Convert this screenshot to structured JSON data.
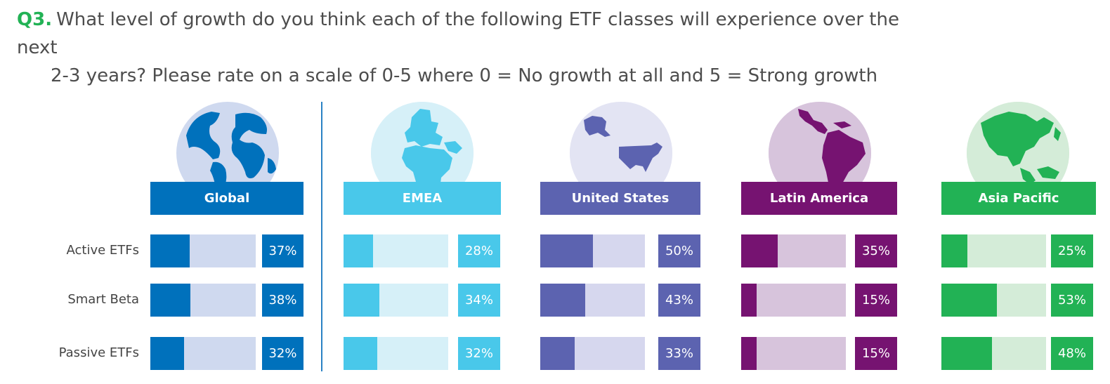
{
  "question": {
    "number": "Q3.",
    "line1": "What level of growth do you think each of the following ETF classes will experience over the next",
    "line2": "2-3 years? Please rate on a scale of 0-5 where 0 = No growth at all and 5 = Strong growth"
  },
  "chart_data": {
    "type": "bar",
    "title": "What level of growth do you think each of the following ETF classes will experience over the next 2-3 years?",
    "categories": [
      "Active ETFs",
      "Smart Beta",
      "Passive ETFs"
    ],
    "unit": "%",
    "ylim": [
      0,
      100
    ],
    "series": [
      {
        "name": "Global",
        "values": [
          37,
          38,
          32
        ],
        "labels": [
          "37%",
          "38%",
          "32%"
        ],
        "color": "#0071bc",
        "light": "#cfd9ef",
        "circle": "#cfd9ef",
        "icon": "globe-icon"
      },
      {
        "name": "EMEA",
        "values": [
          28,
          34,
          32
        ],
        "labels": [
          "28%",
          "34%",
          "32%"
        ],
        "color": "#49c8ea",
        "light": "#d6f0f8",
        "circle": "#d6f0f8",
        "icon": "emea-map-icon"
      },
      {
        "name": "United States",
        "values": [
          50,
          43,
          33
        ],
        "labels": [
          "50%",
          "43%",
          "33%"
        ],
        "color": "#5c63b0",
        "light": "#d6d7ee",
        "circle": "#e3e4f3",
        "icon": "united-states-map-icon"
      },
      {
        "name": "Latin America",
        "values": [
          35,
          15,
          15
        ],
        "labels": [
          "35%",
          "15%",
          "15%"
        ],
        "color": "#761371",
        "light": "#d7c4dc",
        "circle": "#d7c4dc",
        "icon": "latin-america-map-icon"
      },
      {
        "name": "Asia Pacific",
        "values": [
          25,
          53,
          48
        ],
        "labels": [
          "25%",
          "53%",
          "48%"
        ],
        "color": "#22b255",
        "light": "#d4ecd8",
        "circle": "#d4ecd8",
        "icon": "asia-pacific-map-icon"
      }
    ]
  }
}
